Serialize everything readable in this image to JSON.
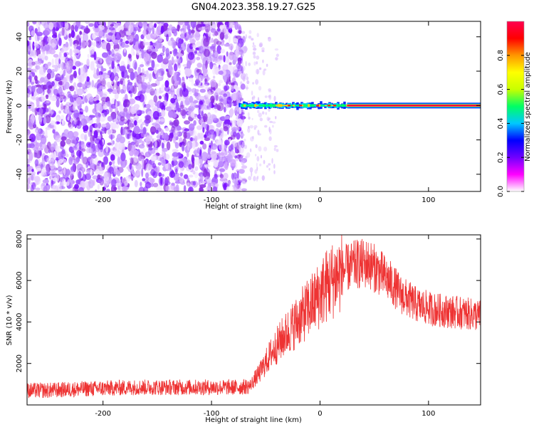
{
  "title": "GN04.2023.358.19.27.G25",
  "chart_data": [
    {
      "type": "heatmap",
      "xlabel": "Height of straight line (km)",
      "ylabel": "Frequency (Hz)",
      "xlim": [
        -270,
        148
      ],
      "ylim": [
        -50,
        49
      ],
      "xticks": [
        -200,
        -100,
        0,
        100
      ],
      "xtick_labels": [
        "-200",
        "-100",
        "0",
        "100"
      ],
      "yticks": [
        -40,
        -20,
        0,
        20,
        40
      ],
      "ytick_labels": [
        "-40",
        "-20",
        "0",
        "20",
        "40"
      ],
      "colorbar": {
        "label": "Normalized spectral amplitude",
        "range": [
          0,
          1
        ],
        "ticks": [
          0,
          0.2,
          0.4,
          0.6,
          0.8
        ],
        "tick_labels": [
          "0.0",
          "0.2",
          "0.4",
          "0.6",
          "0.8"
        ],
        "colors": [
          "#ffffff",
          "#ff00ff",
          "#7000ff",
          "#0000ff",
          "#00c8ff",
          "#00ff64",
          "#c8ff00",
          "#ffff00",
          "#ff9600",
          "#ff0000",
          "#ff0050"
        ]
      },
      "regions": [
        {
          "x_range": [
            -270,
            -75
          ],
          "y_range": [
            -50,
            49
          ],
          "pattern": "noise",
          "dominant_color": "#7a00ff"
        },
        {
          "x_range": [
            -75,
            25
          ],
          "y_range": [
            -3,
            3
          ],
          "pattern": "signal",
          "dominant_color": "#00ff80"
        },
        {
          "x_range": [
            25,
            148
          ],
          "y_range": [
            -1,
            1
          ],
          "pattern": "signal",
          "dominant_color": "#ff0040"
        }
      ]
    },
    {
      "type": "line",
      "xlabel": "Height of straight line (km)",
      "ylabel": "SNR (10 * v/v)",
      "xlim": [
        -270,
        148
      ],
      "ylim": [
        0,
        8200
      ],
      "xticks": [
        -200,
        -100,
        0,
        100
      ],
      "xtick_labels": [
        "-200",
        "-100",
        "0",
        "100"
      ],
      "yticks": [
        2000,
        4000,
        6000,
        8000
      ],
      "ytick_labels": [
        "2000",
        "4000",
        "6000",
        "8000"
      ],
      "series": [
        {
          "color": "#ee3333",
          "x": [
            -270,
            -250,
            -230,
            -200,
            -170,
            -140,
            -110,
            -90,
            -75,
            -65,
            -55,
            -45,
            -35,
            -25,
            -15,
            -5,
            5,
            15,
            25,
            35,
            45,
            55,
            65,
            75,
            90,
            105,
            120,
            135,
            148
          ],
          "y": [
            700,
            700,
            750,
            800,
            850,
            850,
            850,
            850,
            850,
            900,
            1600,
            2500,
            3200,
            3800,
            4400,
            5000,
            5700,
            6200,
            6600,
            6800,
            6800,
            6400,
            5900,
            5300,
            4800,
            4600,
            4500,
            4400,
            4300
          ]
        }
      ]
    }
  ]
}
